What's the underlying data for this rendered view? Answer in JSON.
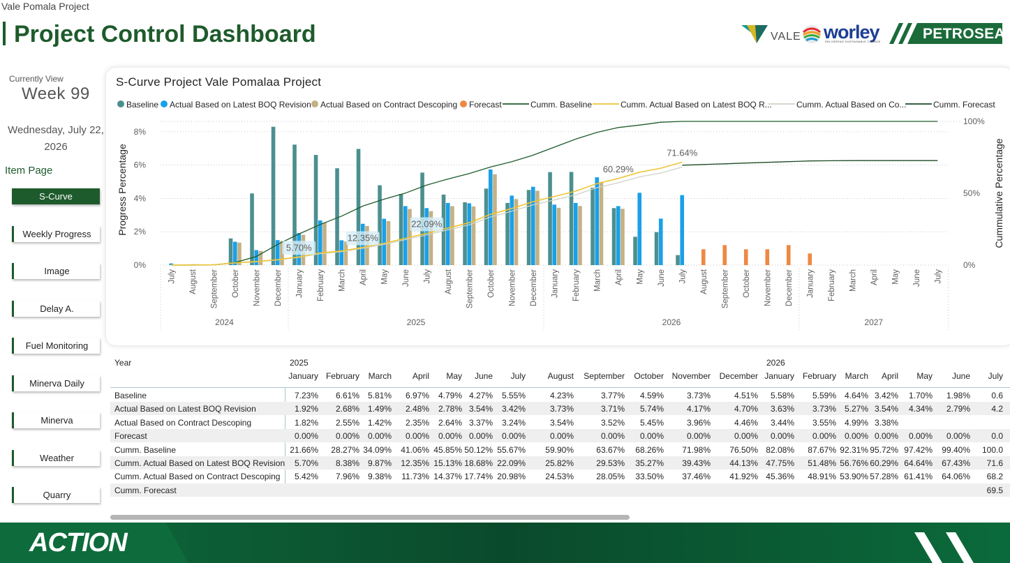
{
  "window_title": "Vale Pomala Project",
  "page_title": "Project Control Dashboard",
  "logos": {
    "vale": "VALE",
    "worley": "worley",
    "worley_tagline": "DELIVERING SUSTAINABLE CHANGE",
    "petrosea": "PETROSEA"
  },
  "sidebar": {
    "currently_label": "Currently View",
    "week": "Week 99",
    "date": "Wednesday, July 22, 2026",
    "item_page_label": "Item Page",
    "items": [
      {
        "label": "S-Curve",
        "active": true
      },
      {
        "label": "Weekly Progress",
        "active": false
      },
      {
        "label": "Image",
        "active": false
      },
      {
        "label": "Delay A.",
        "active": false
      },
      {
        "label": "Fuel Monitoring",
        "active": false
      },
      {
        "label": "Minerva Daily",
        "active": false
      },
      {
        "label": "Minerva",
        "active": false
      },
      {
        "label": "Weather",
        "active": false
      },
      {
        "label": "Quarry",
        "active": false
      }
    ]
  },
  "footer": {
    "brand": "ACTION"
  },
  "colors": {
    "baseline": "#4c8f8f",
    "actual_boq": "#1aa0e8",
    "actual_contract": "#c4b184",
    "forecast": "#ee8844",
    "cumm_baseline": "#1e5b2c",
    "cumm_actual_boq": "#eec536",
    "cumm_actual_contract": "#cfd3c6",
    "cumm_forecast": "#1c4a25",
    "brand_green": "#1e5b2c"
  },
  "chart_data": {
    "type": "bar",
    "title": "S-Curve Project Vale Pomalaa Project",
    "ylabel": "Progress Percentage",
    "y2label": "Cummulative Percentage",
    "ylim": [
      0,
      9
    ],
    "y_ticks": [
      "0%",
      "2%",
      "4%",
      "6%",
      "8%"
    ],
    "y2lim": [
      0,
      100
    ],
    "y2_ticks": [
      "0%",
      "50%",
      "100%"
    ],
    "legend_position": "top",
    "legend": [
      "Baseline",
      "Actual Based on Latest BOQ Revision",
      "Actual Based on Contract Descoping",
      "Forecast",
      "Cumm. Baseline",
      "Cumm. Actual Based on Latest BOQ R...",
      "Cumm. Actual Based on Co...",
      "Cumm. Forecast"
    ],
    "categories": [
      "July",
      "August",
      "September",
      "October",
      "November",
      "December",
      "January",
      "February",
      "March",
      "April",
      "May",
      "June",
      "July",
      "August",
      "September",
      "October",
      "November",
      "December",
      "January",
      "February",
      "March",
      "April",
      "May",
      "June",
      "July",
      "August",
      "September",
      "October",
      "November",
      "December",
      "January",
      "February",
      "March",
      "April",
      "May",
      "June",
      "July"
    ],
    "years": [
      {
        "label": "2024",
        "start": 0,
        "end": 5
      },
      {
        "label": "2025",
        "start": 6,
        "end": 17
      },
      {
        "label": "2026",
        "start": 18,
        "end": 29
      },
      {
        "label": "2027",
        "start": 30,
        "end": 36
      }
    ],
    "series": [
      {
        "name": "Baseline",
        "type": "bar",
        "values": [
          0.0,
          0.0,
          0.0,
          1.6,
          4.3,
          8.3,
          7.23,
          6.61,
          5.81,
          6.97,
          4.79,
          4.27,
          5.55,
          4.23,
          3.77,
          4.59,
          3.73,
          4.51,
          5.58,
          5.59,
          4.64,
          3.42,
          1.7,
          1.98,
          0.6,
          null,
          null,
          null,
          null,
          null,
          0,
          0,
          0,
          0,
          0,
          0,
          0
        ]
      },
      {
        "name": "Actual Based on Latest BOQ Revision",
        "type": "bar",
        "values": [
          0.1,
          0.05,
          0.05,
          1.4,
          0.9,
          1.5,
          1.92,
          2.68,
          1.49,
          2.48,
          2.78,
          3.54,
          3.42,
          3.73,
          3.71,
          5.74,
          4.17,
          4.7,
          3.63,
          3.73,
          5.27,
          3.54,
          4.34,
          2.79,
          4.2,
          null,
          null,
          null,
          null,
          null,
          null,
          null,
          null,
          null,
          null,
          null,
          null
        ]
      },
      {
        "name": "Actual Based on Contract Descoping",
        "type": "bar",
        "values": [
          0.0,
          0.05,
          0.05,
          1.35,
          0.85,
          1.45,
          1.82,
          2.55,
          1.42,
          2.35,
          2.64,
          3.37,
          3.24,
          3.54,
          3.52,
          5.45,
          3.96,
          4.46,
          3.44,
          3.55,
          4.99,
          3.38,
          null,
          null,
          null,
          null,
          null,
          null,
          null,
          null,
          null,
          null,
          null,
          null,
          null,
          null,
          null
        ]
      },
      {
        "name": "Forecast",
        "type": "bar",
        "values": [
          null,
          null,
          null,
          null,
          null,
          null,
          0,
          0,
          0,
          0,
          0,
          0,
          0,
          0,
          0,
          0,
          0,
          0,
          0,
          0,
          0,
          0,
          0,
          0,
          0,
          0.95,
          1.2,
          0.95,
          0.95,
          1.2,
          0.7,
          null,
          null,
          null,
          null,
          null,
          null
        ]
      },
      {
        "name": "Cumm. Baseline",
        "type": "line",
        "values": [
          0.0,
          0.0,
          0.1,
          1.8,
          6.0,
          14.4,
          21.66,
          28.27,
          34.09,
          41.06,
          45.85,
          50.12,
          55.67,
          59.9,
          63.67,
          68.26,
          71.98,
          76.5,
          82.08,
          87.67,
          92.31,
          95.72,
          97.42,
          99.4,
          100.0,
          100.0,
          100.0,
          100.0,
          100.0,
          100.0,
          100.0,
          100.0,
          100.0,
          100.0,
          100.0,
          100.0,
          100.0
        ]
      },
      {
        "name": "Cumm. Actual Based on Latest BOQ Revision",
        "type": "line",
        "values": [
          0.1,
          0.15,
          0.2,
          1.6,
          2.5,
          3.78,
          5.7,
          8.38,
          9.87,
          12.35,
          15.13,
          18.68,
          22.09,
          25.82,
          29.53,
          35.27,
          39.43,
          44.13,
          47.75,
          51.48,
          56.76,
          60.29,
          64.64,
          67.43,
          71.64,
          null,
          null,
          null,
          null,
          null,
          null,
          null,
          null,
          null,
          null,
          null,
          null
        ]
      },
      {
        "name": "Cumm. Actual Based on Contract Descoping",
        "type": "line",
        "values": [
          0.0,
          0.05,
          0.1,
          1.45,
          2.3,
          3.6,
          5.42,
          7.96,
          9.38,
          11.73,
          14.37,
          17.74,
          20.98,
          24.53,
          28.05,
          33.5,
          37.46,
          41.92,
          45.36,
          48.91,
          53.9,
          57.28,
          61.41,
          64.06,
          68.2,
          null,
          null,
          null,
          null,
          null,
          null,
          null,
          null,
          null,
          null,
          null,
          null
        ]
      },
      {
        "name": "Cumm. Forecast",
        "type": "line",
        "values": [
          null,
          null,
          null,
          null,
          null,
          null,
          null,
          null,
          null,
          null,
          null,
          null,
          null,
          null,
          null,
          null,
          null,
          null,
          null,
          null,
          null,
          null,
          null,
          null,
          69.5,
          70.0,
          70.5,
          71.0,
          71.5,
          72.0,
          72.5,
          72.6,
          72.7,
          72.7,
          72.7,
          72.7,
          72.7
        ]
      }
    ],
    "data_labels": [
      {
        "series": "Cumm. Actual Based on Latest BOQ Revision",
        "index": 6,
        "text": "5.70%"
      },
      {
        "series": "Cumm. Actual Based on Latest BOQ Revision",
        "index": 9,
        "text": "12.35%"
      },
      {
        "series": "Cumm. Actual Based on Latest BOQ Revision",
        "index": 12,
        "text": "22.09%"
      },
      {
        "series": "Cumm. Actual Based on Latest BOQ Revision",
        "index": 21,
        "text": "60.29%"
      },
      {
        "series": "Cumm. Actual Based on Latest BOQ Revision",
        "index": 24,
        "text": "71.64%"
      }
    ]
  },
  "table": {
    "year_header": "Year",
    "year_groups": [
      {
        "label": "2025",
        "start": 0
      },
      {
        "label": "2026",
        "start": 12
      }
    ],
    "columns": [
      "January",
      "February",
      "March",
      "April",
      "May",
      "June",
      "July",
      "August",
      "September",
      "October",
      "November",
      "December",
      "January",
      "February",
      "March",
      "April",
      "May",
      "June",
      "July"
    ],
    "rows": [
      {
        "label": "Baseline",
        "values": [
          "7.23%",
          "6.61%",
          "5.81%",
          "6.97%",
          "4.79%",
          "4.27%",
          "5.55%",
          "4.23%",
          "3.77%",
          "4.59%",
          "3.73%",
          "4.51%",
          "5.58%",
          "5.59%",
          "4.64%",
          "3.42%",
          "1.70%",
          "1.98%",
          "0.6"
        ]
      },
      {
        "label": "Actual Based on Latest BOQ Revision",
        "values": [
          "1.92%",
          "2.68%",
          "1.49%",
          "2.48%",
          "2.78%",
          "3.54%",
          "3.42%",
          "3.73%",
          "3.71%",
          "5.74%",
          "4.17%",
          "4.70%",
          "3.63%",
          "3.73%",
          "5.27%",
          "3.54%",
          "4.34%",
          "2.79%",
          "4.2"
        ]
      },
      {
        "label": "Actual Based on Contract Descoping",
        "values": [
          "1.82%",
          "2.55%",
          "1.42%",
          "2.35%",
          "2.64%",
          "3.37%",
          "3.24%",
          "3.54%",
          "3.52%",
          "5.45%",
          "3.96%",
          "4.46%",
          "3.44%",
          "3.55%",
          "4.99%",
          "3.38%",
          "",
          "",
          ""
        ]
      },
      {
        "label": "Forecast",
        "values": [
          "0.00%",
          "0.00%",
          "0.00%",
          "0.00%",
          "0.00%",
          "0.00%",
          "0.00%",
          "0.00%",
          "0.00%",
          "0.00%",
          "0.00%",
          "0.00%",
          "0.00%",
          "0.00%",
          "0.00%",
          "0.00%",
          "0.00%",
          "0.00%",
          "0.0"
        ]
      },
      {
        "label": "Cumm. Baseline",
        "values": [
          "21.66%",
          "28.27%",
          "34.09%",
          "41.06%",
          "45.85%",
          "50.12%",
          "55.67%",
          "59.90%",
          "63.67%",
          "68.26%",
          "71.98%",
          "76.50%",
          "82.08%",
          "87.67%",
          "92.31%",
          "95.72%",
          "97.42%",
          "99.40%",
          "100.0"
        ]
      },
      {
        "label": "Cumm. Actual Based on Latest BOQ Revision",
        "values": [
          "5.70%",
          "8.38%",
          "9.87%",
          "12.35%",
          "15.13%",
          "18.68%",
          "22.09%",
          "25.82%",
          "29.53%",
          "35.27%",
          "39.43%",
          "44.13%",
          "47.75%",
          "51.48%",
          "56.76%",
          "60.29%",
          "64.64%",
          "67.43%",
          "71.6"
        ]
      },
      {
        "label": "Cumm. Actual Based on Contract Descoping",
        "values": [
          "5.42%",
          "7.96%",
          "9.38%",
          "11.73%",
          "14.37%",
          "17.74%",
          "20.98%",
          "24.53%",
          "28.05%",
          "33.50%",
          "37.46%",
          "41.92%",
          "45.36%",
          "48.91%",
          "53.90%",
          "57.28%",
          "61.41%",
          "64.06%",
          "68.2"
        ]
      },
      {
        "label": "Cumm. Forecast",
        "values": [
          "",
          "",
          "",
          "",
          "",
          "",
          "",
          "",
          "",
          "",
          "",
          "",
          "",
          "",
          "",
          "",
          "",
          "",
          "69.5"
        ]
      }
    ]
  }
}
